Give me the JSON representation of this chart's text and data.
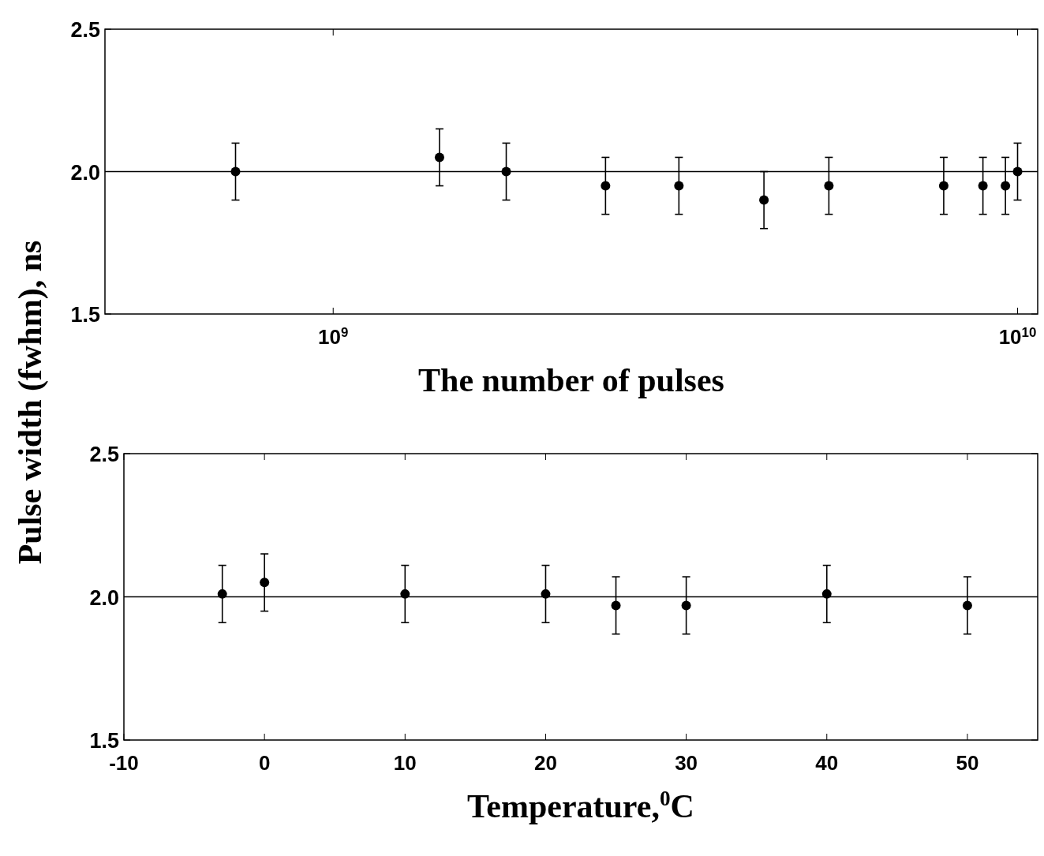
{
  "chart_data": [
    {
      "type": "scatter",
      "xlabel": "The number of pulses",
      "ylabel": "Pulse width (fwhm), ns",
      "log": "x",
      "marker": "circle",
      "grid": false,
      "xlim": [
        464000000,
        10700000000
      ],
      "xticks": [
        {
          "value": 1000000000,
          "label": "10$^{9}$"
        },
        {
          "value": 10000000000,
          "label": "10$^{10}$"
        }
      ],
      "ylim": [
        1.5,
        2.5
      ],
      "yticks": [
        {
          "value": 1.5,
          "label": "1.5"
        },
        {
          "value": 2.0,
          "label": "2.0"
        },
        {
          "value": 2.5,
          "label": "2.5"
        }
      ],
      "ref_lines": [
        {
          "axis": "y",
          "value": 2.0,
          "color": "#000000"
        }
      ],
      "series": [
        {
          "color": "#000000",
          "x": [
            720000000,
            1430000000,
            1790000000,
            2500000000,
            3200000000,
            4260000000,
            5300000000,
            7800000000,
            8900000000,
            9600000000,
            10000000000
          ],
          "values": [
            2.0,
            2.05,
            2.0,
            1.95,
            1.95,
            1.9,
            1.95,
            1.95,
            1.95,
            1.95,
            2.0
          ],
          "errors": [
            0.1,
            0.1,
            0.1,
            0.1,
            0.1,
            0.1,
            0.1,
            0.1,
            0.1,
            0.1,
            0.1
          ]
        }
      ]
    },
    {
      "type": "scatter",
      "xlabel": "Temperature,$^{0}$C",
      "marker": "circle",
      "grid": false,
      "xlim": [
        -10,
        55
      ],
      "xticks": [
        -10,
        0,
        10,
        20,
        30,
        40,
        50
      ],
      "ylim": [
        1.5,
        2.5
      ],
      "yticks": [
        {
          "value": 1.5,
          "label": "1.5"
        },
        {
          "value": 2.0,
          "label": "2.0"
        },
        {
          "value": 2.5,
          "label": "2.5"
        }
      ],
      "ref_lines": [
        {
          "axis": "y",
          "value": 2.0,
          "color": "#000000"
        }
      ],
      "series": [
        {
          "color": "#000000",
          "x": [
            -3,
            0,
            10,
            20,
            25,
            30,
            40,
            50
          ],
          "values": [
            2.01,
            2.05,
            2.01,
            2.01,
            1.97,
            1.97,
            2.01,
            1.97
          ],
          "errors": [
            0.1,
            0.1,
            0.1,
            0.1,
            0.1,
            0.1,
            0.1,
            0.1
          ]
        }
      ]
    }
  ]
}
